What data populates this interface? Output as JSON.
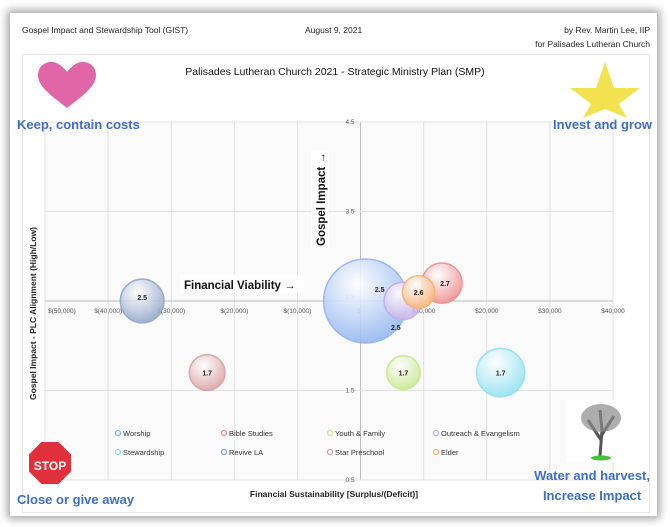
{
  "header": {
    "tool_name": "Gospel Impact and Stewardship Tool (GIST)",
    "date": "August 9, 2021",
    "author": "by Rev. Martin Lee, IIP",
    "for_line": "for Palisades Lutheran Church"
  },
  "quadrants": {
    "top_left": {
      "label": "Keep, contain costs",
      "icon": "heart-icon",
      "color": "#e066a8"
    },
    "top_right": {
      "label": "Invest and grow",
      "icon": "star-icon",
      "color": "#f2e250"
    },
    "bottom_left": {
      "label": "Close or give away",
      "icon": "stop-sign-icon",
      "sign_text": "STOP",
      "color": "#e0303c"
    },
    "bottom_right": {
      "label_line1": "Water and harvest,",
      "label_line2": "Increase Impact",
      "icon": "tree-icon"
    }
  },
  "label_color": "#3d6fc4",
  "chart_data": {
    "type": "bubble",
    "title": "Palisades Lutheran Church 2021 - Strategic Ministry Plan (SMP)",
    "xlabel": "Financial Sustainability [Surplus/(Deficit)]",
    "ylabel": "Gospel Impact - PLC Alignment (High/Low)",
    "x_annotation": "Financial Viability →",
    "y_annotation": "Gospel Impact →",
    "xlim": [
      -50000,
      40000
    ],
    "ylim": [
      0.5,
      4.5
    ],
    "x_ticks": [
      {
        "value": -50000,
        "label": "$(50,000)"
      },
      {
        "value": -40000,
        "label": "$(40,000)"
      },
      {
        "value": -30000,
        "label": "$(30,000)"
      },
      {
        "value": -20000,
        "label": "$(20,000)"
      },
      {
        "value": -10000,
        "label": "$(10,000)"
      },
      {
        "value": 0,
        "label": "$-"
      },
      {
        "value": 10000,
        "label": "$10,000"
      },
      {
        "value": 20000,
        "label": "$20,000"
      },
      {
        "value": 30000,
        "label": "$30,000"
      },
      {
        "value": 40000,
        "label": "$40,000"
      }
    ],
    "y_ticks": [
      {
        "value": 4.5,
        "label": "4.5"
      },
      {
        "value": 3.5,
        "label": "3.5"
      },
      {
        "value": 2.5,
        "label": "2.5"
      },
      {
        "value": 1.5,
        "label": "1.5"
      },
      {
        "value": 0.5,
        "label": "0.5"
      }
    ],
    "grid": true,
    "legend_position": "bottom",
    "series": [
      {
        "name": "Worship",
        "x": 800,
        "y": 2.5,
        "size": 100,
        "label": "2.5",
        "color": "#8fb4f0"
      },
      {
        "name": "Bible Studies",
        "x": 12900,
        "y": 2.7,
        "size": 23,
        "label": "2.7",
        "color": "#f08a8a"
      },
      {
        "name": "Youth & Family",
        "x": 6800,
        "y": 1.7,
        "size": 16,
        "label": "1.7",
        "color": "#c4e88a"
      },
      {
        "name": "Outreach & Evangelism",
        "x": 6700,
        "y": 2.5,
        "size": 20,
        "label": "2.5",
        "color": "#c3aeea"
      },
      {
        "name": "Stewardship",
        "x": 22200,
        "y": 1.7,
        "size": 33,
        "label": "1.7",
        "color": "#8ee0f2"
      },
      {
        "name": "Revive LA",
        "x": -34600,
        "y": 2.5,
        "size": 27,
        "label": "2.5",
        "color": "#8ea4c8"
      },
      {
        "name": "Star Preschool",
        "x": -24300,
        "y": 1.7,
        "size": 18,
        "label": "1.7",
        "color": "#d8a0a0"
      },
      {
        "name": "Elder",
        "x": 9200,
        "y": 2.6,
        "size": 15,
        "label": "2.6",
        "color": "#f8b070"
      }
    ]
  }
}
